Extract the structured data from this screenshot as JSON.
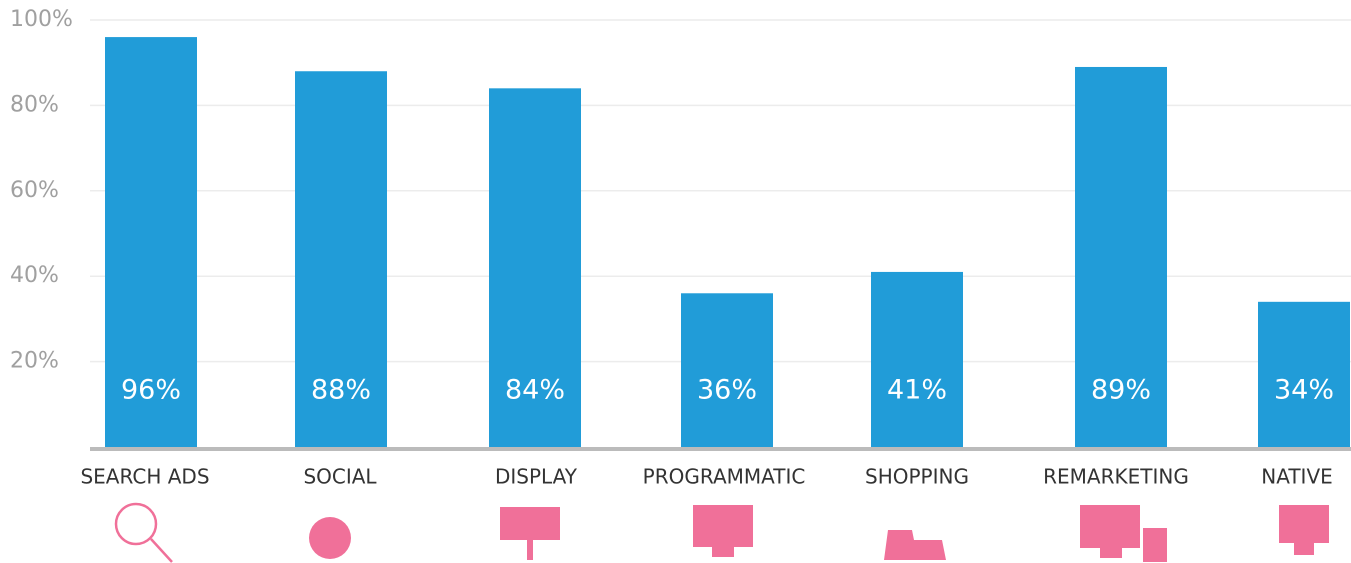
{
  "chart_data": {
    "type": "bar",
    "categories": [
      "SEARCH ADS",
      "SOCIAL",
      "DISPLAY",
      "PROGRAMMATIC",
      "SHOPPING",
      "REMARKETING",
      "NATIVE"
    ],
    "values": [
      96,
      88,
      84,
      36,
      41,
      89,
      34
    ],
    "value_labels": [
      "96%",
      "88%",
      "84%",
      "36%",
      "41%",
      "89%",
      "34%"
    ],
    "color": "#219cd8",
    "ylim": [
      0,
      100
    ],
    "yticks": [
      {
        "value": 20,
        "label": "20%"
      },
      {
        "value": 40,
        "label": "40%"
      },
      {
        "value": 60,
        "label": "60%"
      },
      {
        "value": 80,
        "label": "80%"
      },
      {
        "value": 100,
        "label": "100%"
      }
    ],
    "grid": true
  }
}
